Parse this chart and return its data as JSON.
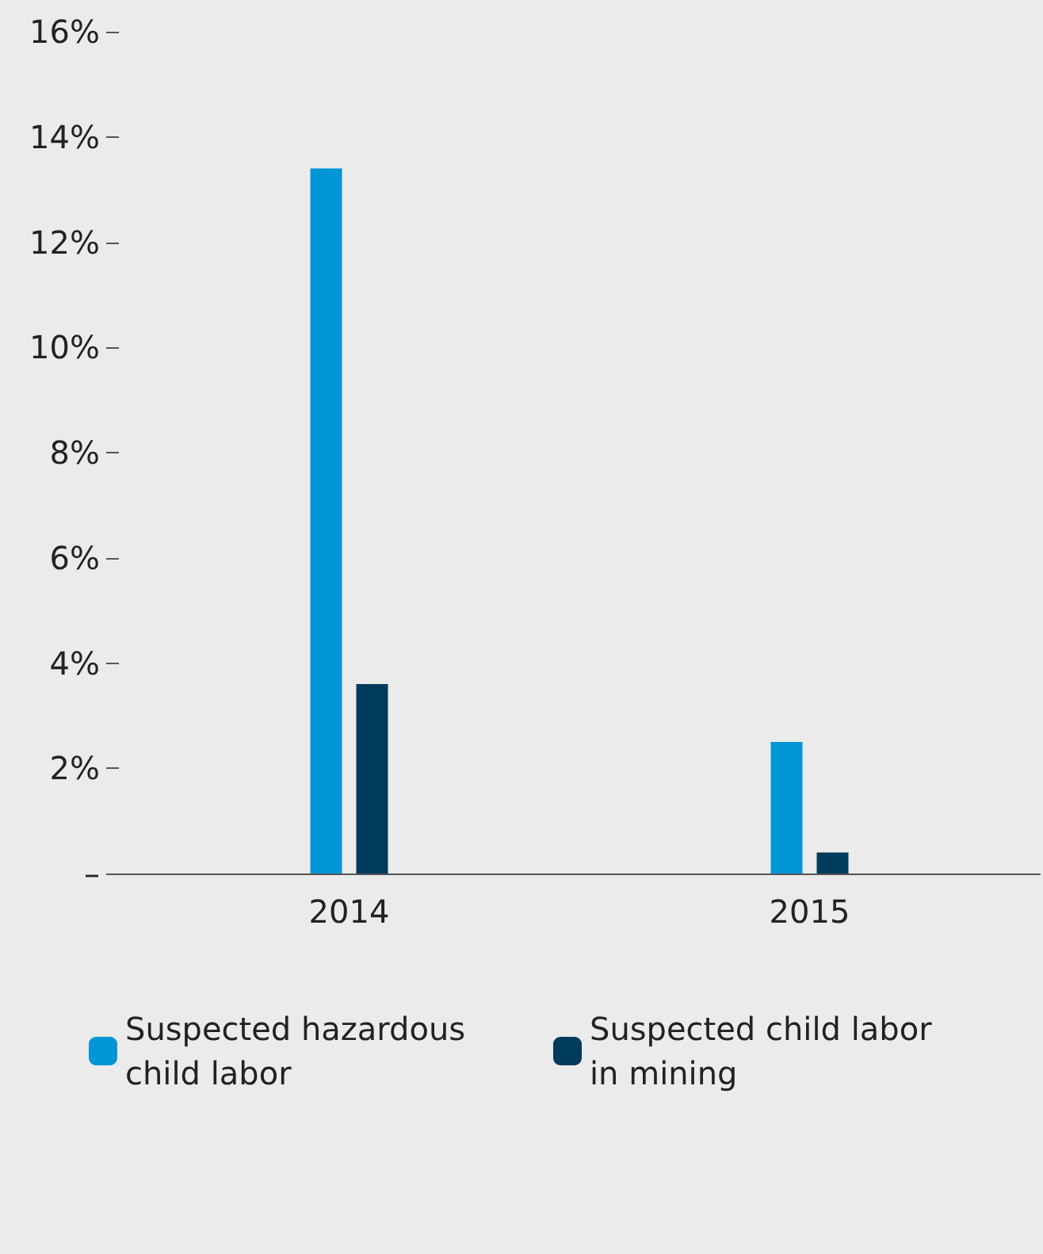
{
  "chart_data": {
    "type": "bar",
    "categories": [
      "2014",
      "2015"
    ],
    "series": [
      {
        "name": "Suspected hazardous child labor",
        "color": "#0096d6",
        "values": [
          13.4,
          2.5
        ]
      },
      {
        "name": "Suspected child labor in mining",
        "color": "#003a5d",
        "values": [
          3.6,
          0.4
        ]
      }
    ],
    "ylim": [
      0,
      16
    ],
    "yticks": [
      {
        "value": 0,
        "label": "–"
      },
      {
        "value": 2,
        "label": "2%"
      },
      {
        "value": 4,
        "label": "4%"
      },
      {
        "value": 6,
        "label": "6%"
      },
      {
        "value": 8,
        "label": "8%"
      },
      {
        "value": 10,
        "label": "10%"
      },
      {
        "value": 12,
        "label": "12%"
      },
      {
        "value": 14,
        "label": "14%"
      },
      {
        "value": 16,
        "label": "16%"
      }
    ],
    "grid": false,
    "legend": "bottom"
  }
}
